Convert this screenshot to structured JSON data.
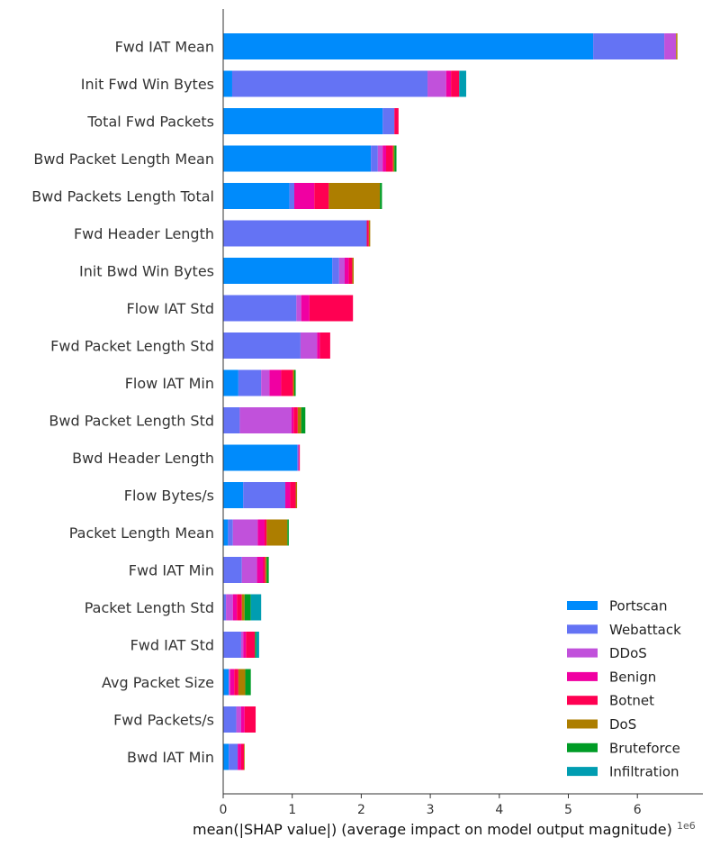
{
  "chart_data": {
    "type": "bar",
    "orientation": "horizontal",
    "stacked": true,
    "xlabel": "mean(|SHAP value|) (average impact on model output magnitude)",
    "xlim": [
      0,
      6.85
    ],
    "xticks": [
      "0",
      "1",
      "2",
      "3",
      "4",
      "5",
      "6"
    ],
    "corner_note": "1e6",
    "legend_position": "bottom-right",
    "grid": false,
    "categories": [
      "Fwd IAT Mean",
      "Init Fwd Win Bytes",
      "Total Fwd Packets",
      "Bwd Packet Length Mean",
      "Bwd Packets Length Total",
      "Fwd Header Length",
      "Init Bwd Win Bytes",
      "Flow IAT Std",
      "Fwd Packet Length Std",
      "Flow IAT Min",
      "Bwd Packet Length Std",
      "Bwd Header Length",
      "Flow Bytes/s",
      "Packet Length Mean",
      "Fwd IAT Min",
      "Packet Length Std",
      "Fwd IAT Std",
      "Avg Packet Size",
      "Fwd Packets/s",
      "Bwd IAT Min"
    ],
    "series": [
      {
        "name": "Portscan",
        "color": "#008bfb",
        "values": [
          5.36,
          0.13,
          2.31,
          2.14,
          0.96,
          0.0,
          1.58,
          0.0,
          0.0,
          0.22,
          0.0,
          1.07,
          0.29,
          0.07,
          0.0,
          0.0,
          0.0,
          0.08,
          0.0,
          0.08
        ]
      },
      {
        "name": "Webattack",
        "color": "#6473f4",
        "values": [
          1.03,
          2.83,
          0.17,
          0.1,
          0.07,
          2.08,
          0.1,
          1.06,
          1.12,
          0.33,
          0.24,
          0.02,
          0.61,
          0.07,
          0.27,
          0.04,
          0.26,
          0.0,
          0.19,
          0.13
        ]
      },
      {
        "name": "DDoS",
        "color": "#c151db",
        "values": [
          0.17,
          0.27,
          0.0,
          0.07,
          0.0,
          0.0,
          0.08,
          0.07,
          0.24,
          0.12,
          0.75,
          0.0,
          0.0,
          0.36,
          0.22,
          0.1,
          0.03,
          0.02,
          0.07,
          0.0
        ]
      },
      {
        "name": "Benign",
        "color": "#f000a2",
        "values": [
          0.0,
          0.07,
          0.0,
          0.05,
          0.29,
          0.0,
          0.06,
          0.12,
          0.04,
          0.17,
          0.03,
          0.01,
          0.07,
          0.1,
          0.09,
          0.06,
          0.04,
          0.06,
          0.05,
          0.05
        ]
      },
      {
        "name": "Botnet",
        "color": "#ff0052",
        "values": [
          0.0,
          0.12,
          0.06,
          0.1,
          0.21,
          0.03,
          0.05,
          0.63,
          0.15,
          0.17,
          0.06,
          0.01,
          0.08,
          0.03,
          0.03,
          0.07,
          0.13,
          0.06,
          0.16,
          0.04
        ]
      },
      {
        "name": "DoS",
        "color": "#ad7e00",
        "values": [
          0.02,
          0.0,
          0.0,
          0.02,
          0.74,
          0.02,
          0.02,
          0.0,
          0.0,
          0.02,
          0.05,
          0.0,
          0.02,
          0.3,
          0.02,
          0.04,
          0.0,
          0.1,
          0.0,
          0.01
        ]
      },
      {
        "name": "Bruteforce",
        "color": "#009c26",
        "values": [
          0.0,
          0.0,
          0.0,
          0.03,
          0.03,
          0.0,
          0.0,
          0.0,
          0.0,
          0.02,
          0.06,
          0.0,
          0.0,
          0.02,
          0.03,
          0.09,
          0.02,
          0.08,
          0.0,
          0.0
        ]
      },
      {
        "name": "Infiltration",
        "color": "#009db1",
        "values": [
          0.0,
          0.1,
          0.0,
          0.0,
          0.0,
          0.0,
          0.0,
          0.0,
          0.0,
          0.0,
          0.0,
          0.0,
          0.0,
          0.0,
          0.0,
          0.15,
          0.04,
          0.0,
          0.0,
          0.0
        ]
      }
    ]
  }
}
